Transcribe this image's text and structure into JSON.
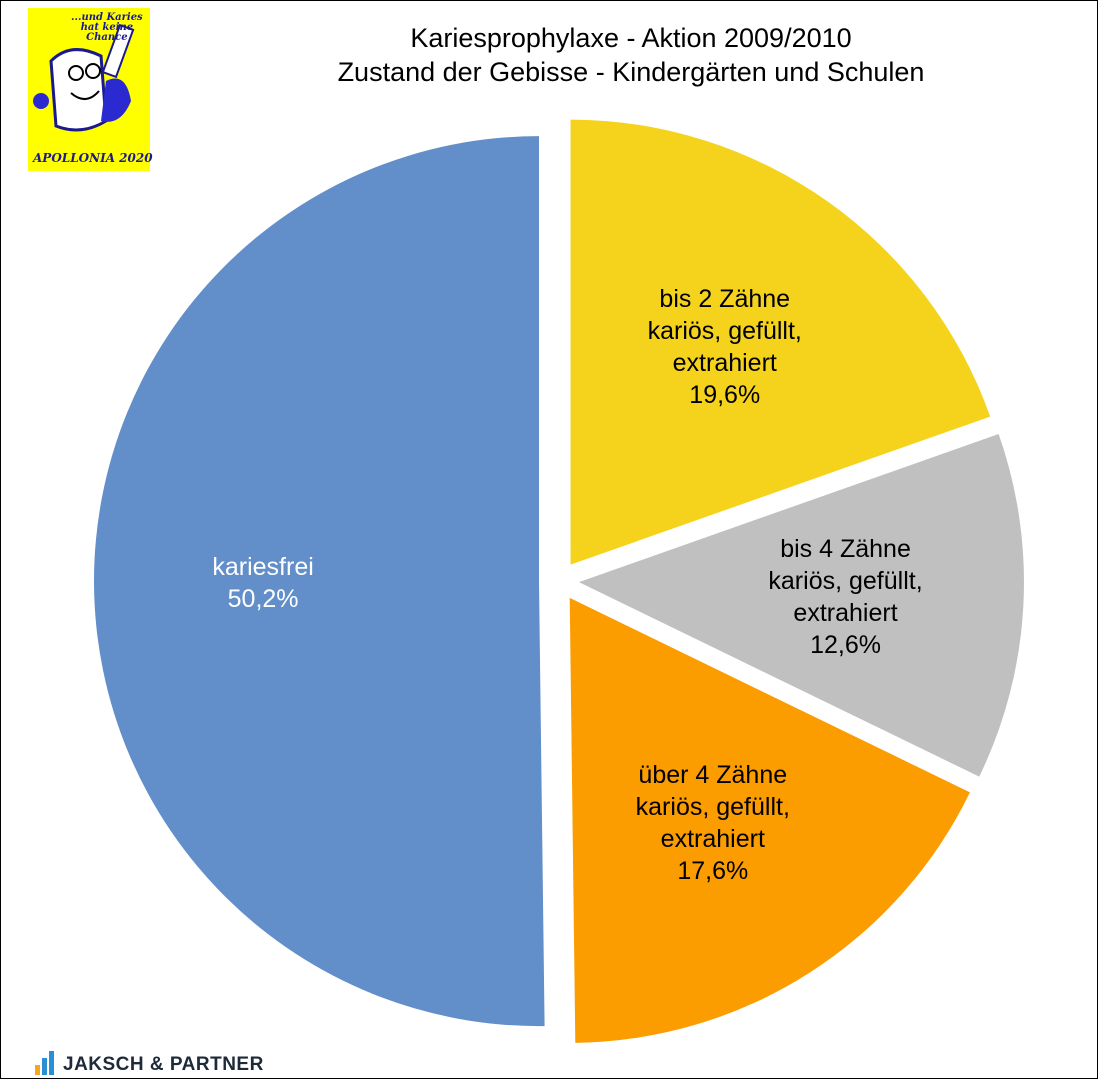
{
  "chart_data": {
    "type": "pie",
    "title": "Kariesprophylaxe - Aktion 2009/2010",
    "subtitle": "Zustand der Gebisse - Kindergärten und Schulen",
    "categories": [
      "bis 2 Zähne\nkariös, gefüllt,\nextrahiert",
      "bis 4 Zähne\nkariös, gefüllt,\nextrahiert",
      "über 4 Zähne\nkariös, gefüllt,\nextrahiert",
      "kariesfrei"
    ],
    "values": [
      19.6,
      12.6,
      17.6,
      50.2
    ],
    "value_labels": [
      "19,6%",
      "12,6%",
      "17,6%",
      "50,2%"
    ],
    "colors": [
      "#f5d31c",
      "#c0c0c0",
      "#fb9c00",
      "#628fc9"
    ]
  },
  "logo": {
    "slogan": "...und Karies\nhat keine\nChance",
    "name": "APOLLONIA 2020"
  },
  "footer": {
    "brand": "JAKSCH & PARTNER"
  }
}
